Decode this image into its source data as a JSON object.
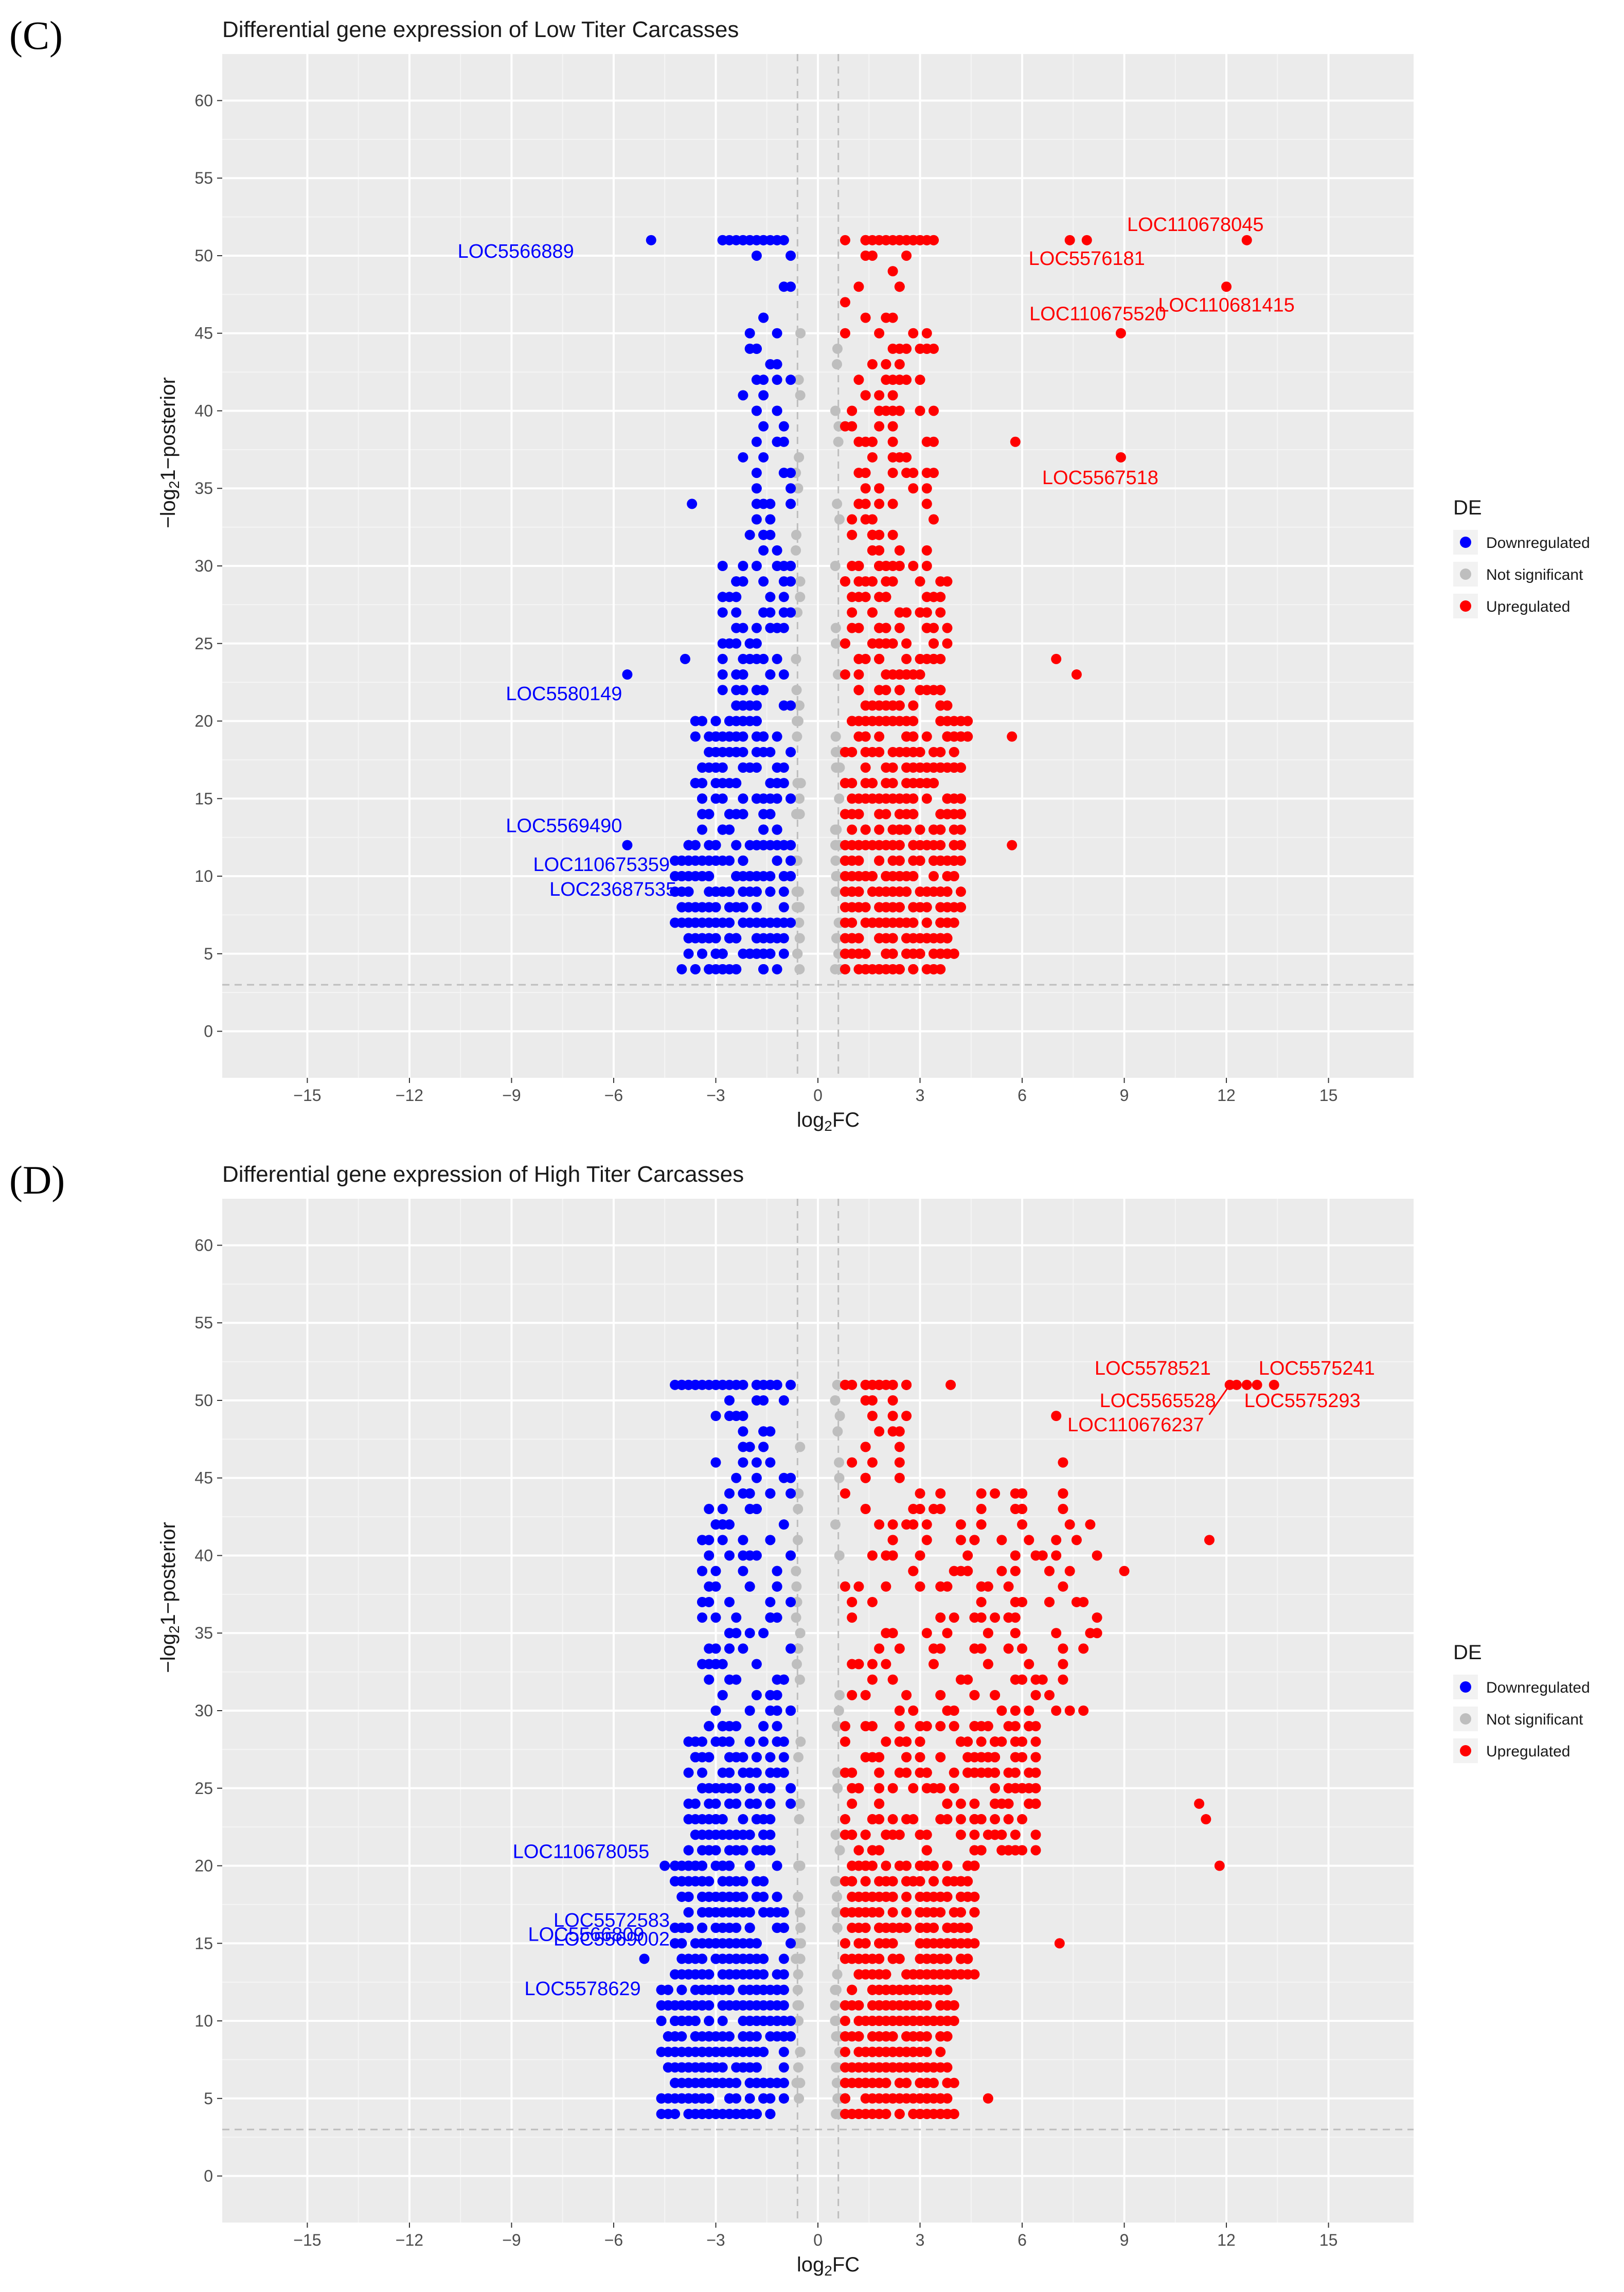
{
  "chart_data": [
    {
      "panel": "(C)",
      "type": "scatter",
      "title": "Differential gene expression of Low Titer Carcasses",
      "xlabel": "log2FC",
      "ylabel": "-log21-posterior",
      "xlim": [
        -17.5,
        17.5
      ],
      "ylim": [
        -3,
        63
      ],
      "x_ticks": [
        -15,
        -12,
        -9,
        -6,
        -3,
        0,
        3,
        6,
        9,
        12,
        15
      ],
      "y_ticks": [
        0,
        5,
        10,
        15,
        20,
        25,
        30,
        35,
        40,
        45,
        50,
        55,
        60
      ],
      "thresholds": {
        "x": [
          -0.6,
          0.6
        ],
        "y": 3
      },
      "legend": {
        "title": "DE",
        "position": "right",
        "entries": [
          "Downregulated",
          "Not significant",
          "Upregulated"
        ]
      },
      "colors": {
        "Downregulated": "#0000ff",
        "Not significant": "#bebebe",
        "Upregulated": "#ff0000"
      },
      "profile": "low",
      "labeled_points": [
        {
          "name": "LOC5566889",
          "x": -4.9,
          "y": 51,
          "group": "Downregulated"
        },
        {
          "name": "LOC5580149",
          "x": -5.6,
          "y": 23,
          "group": "Downregulated"
        },
        {
          "name": "LOC5569490",
          "x": -5.6,
          "y": 12,
          "group": "Downregulated"
        },
        {
          "name": "LOC110675359",
          "x": -4.2,
          "y": 11,
          "group": "Downregulated"
        },
        {
          "name": "LOC23687535",
          "x": -4.0,
          "y": 10,
          "group": "Downregulated"
        },
        {
          "name": "LOC110678045",
          "x": 12.6,
          "y": 51,
          "group": "Upregulated"
        },
        {
          "name": "LOC5576181",
          "x": 7.4,
          "y": 51,
          "group": "Upregulated"
        },
        {
          "name": "LOC110681415",
          "x": 12.0,
          "y": 48,
          "group": "Upregulated"
        },
        {
          "name": "LOC110675520",
          "x": 8.9,
          "y": 45,
          "group": "Upregulated"
        },
        {
          "name": "LOC5567518",
          "x": 8.9,
          "y": 37,
          "group": "Upregulated"
        }
      ],
      "extra_points": [
        {
          "x": 7.9,
          "y": 51,
          "group": "Upregulated"
        },
        {
          "x": 5.8,
          "y": 38,
          "group": "Upregulated"
        },
        {
          "x": 7.0,
          "y": 24,
          "group": "Upregulated"
        },
        {
          "x": 7.6,
          "y": 23,
          "group": "Upregulated"
        },
        {
          "x": 5.7,
          "y": 12,
          "group": "Upregulated"
        },
        {
          "x": 5.7,
          "y": 19,
          "group": "Upregulated"
        },
        {
          "x": -3.7,
          "y": 34,
          "group": "Downregulated"
        },
        {
          "x": -3.9,
          "y": 24,
          "group": "Downregulated"
        }
      ]
    },
    {
      "panel": "(D)",
      "type": "scatter",
      "title": "Differential gene expression of High Titer Carcasses",
      "xlabel": "log2FC",
      "ylabel": "-log21-posterior",
      "xlim": [
        -17.5,
        17.5
      ],
      "ylim": [
        -3,
        63
      ],
      "x_ticks": [
        -15,
        -12,
        -9,
        -6,
        -3,
        0,
        3,
        6,
        9,
        12,
        15
      ],
      "y_ticks": [
        0,
        5,
        10,
        15,
        20,
        25,
        30,
        35,
        40,
        45,
        50,
        55,
        60
      ],
      "thresholds": {
        "x": [
          -0.6,
          0.6
        ],
        "y": 3
      },
      "legend": {
        "title": "DE",
        "position": "right",
        "entries": [
          "Downregulated",
          "Not significant",
          "Upregulated"
        ]
      },
      "colors": {
        "Downregulated": "#0000ff",
        "Not significant": "#bebebe",
        "Upregulated": "#ff0000"
      },
      "profile": "high",
      "labeled_points": [
        {
          "name": "LOC110678055",
          "x": -4.5,
          "y": 20,
          "group": "Downregulated"
        },
        {
          "name": "LOC5572583",
          "x": -4.2,
          "y": 16,
          "group": "Downregulated"
        },
        {
          "name": "LOC5569002",
          "x": -4.2,
          "y": 15,
          "group": "Downregulated"
        },
        {
          "name": "LOC5566809",
          "x": -5.1,
          "y": 14,
          "group": "Downregulated"
        },
        {
          "name": "LOC5578629",
          "x": -4.6,
          "y": 11,
          "group": "Downregulated"
        },
        {
          "name": "LOC5578521",
          "x": 12.3,
          "y": 51,
          "group": "Upregulated"
        },
        {
          "name": "LOC5575241",
          "x": 13.4,
          "y": 51,
          "group": "Upregulated"
        },
        {
          "name": "LOC5565528",
          "x": 12.6,
          "y": 51,
          "group": "Upregulated"
        },
        {
          "name": "LOC5575293",
          "x": 12.9,
          "y": 51,
          "group": "Upregulated"
        },
        {
          "name": "LOC110676237",
          "x": 12.1,
          "y": 51,
          "group": "Upregulated"
        }
      ],
      "extra_points": [
        {
          "x": 11.5,
          "y": 41,
          "group": "Upregulated"
        },
        {
          "x": 11.2,
          "y": 24,
          "group": "Upregulated"
        },
        {
          "x": 11.4,
          "y": 23,
          "group": "Upregulated"
        },
        {
          "x": 11.8,
          "y": 20,
          "group": "Upregulated"
        },
        {
          "x": 9.0,
          "y": 39,
          "group": "Upregulated"
        },
        {
          "x": 7.0,
          "y": 49,
          "group": "Upregulated"
        },
        {
          "x": 7.2,
          "y": 46,
          "group": "Upregulated"
        },
        {
          "x": 7.1,
          "y": 15,
          "group": "Upregulated"
        },
        {
          "x": 5.0,
          "y": 5,
          "group": "Upregulated"
        },
        {
          "x": 3.9,
          "y": 51,
          "group": "Upregulated"
        }
      ]
    }
  ]
}
